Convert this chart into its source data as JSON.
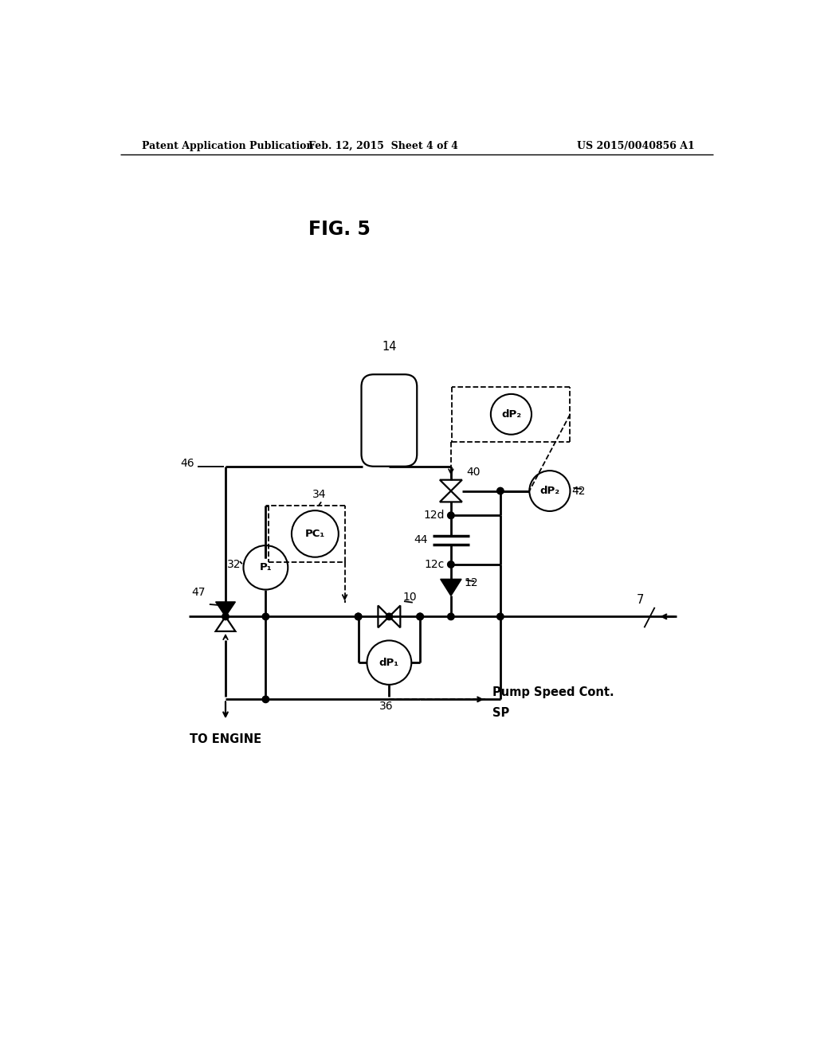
{
  "header_left": "Patent Application Publication",
  "header_mid": "Feb. 12, 2015  Sheet 4 of 4",
  "header_right": "US 2015/0040856 A1",
  "fig_title": "FIG. 5",
  "bg_color": "#ffffff"
}
